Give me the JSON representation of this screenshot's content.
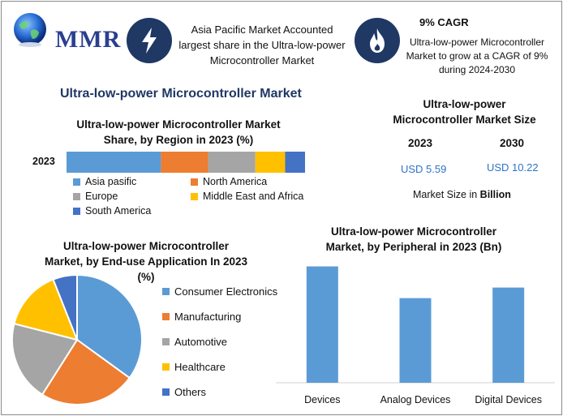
{
  "brand": {
    "name": "MMR"
  },
  "header": {
    "left_text_lines": [
      "Asia Pacific Market Accounted",
      "largest share in the Ultra-low-power",
      "Microcontroller Market"
    ],
    "cagr_title": "9% CAGR",
    "right_text_lines": [
      "Ultra-low-power Microcontroller",
      "Market to grow at a CAGR of 9%",
      "during 2024-2030"
    ]
  },
  "main_title": "Ultra-low-power Microcontroller Market",
  "size_panel": {
    "title_lines": [
      "Ultra-low-power",
      "Microcontroller Market Size"
    ],
    "year1": "2023",
    "year2": "2030",
    "value1": "USD 5.59",
    "value2": "USD 10.22",
    "unit_prefix": "Market Size in ",
    "unit_bold": "Billion"
  },
  "colors": {
    "blue": "#5b9bd5",
    "orange": "#ed7d31",
    "gray": "#a5a5a5",
    "yellow": "#ffc000",
    "darkblue": "#4472c4",
    "navy": "#1f3864"
  },
  "icons": {
    "left_badge": "lightning-icon",
    "right_badge": "flame-icon",
    "logo": "globe-icon"
  },
  "chart_data": [
    {
      "type": "bar",
      "orientation": "horizontal-stacked",
      "title_lines": [
        "Ultra-low-power Microcontroller Market",
        "Share, by Region in 2023 (%)"
      ],
      "categories": [
        "2023"
      ],
      "series": [
        {
          "name": "Asia pasific",
          "values": [
            38
          ],
          "color": "#5b9bd5"
        },
        {
          "name": "North America",
          "values": [
            19
          ],
          "color": "#ed7d31"
        },
        {
          "name": "Europe",
          "values": [
            19
          ],
          "color": "#a5a5a5"
        },
        {
          "name": "Middle East and Africa",
          "values": [
            12
          ],
          "color": "#ffc000"
        },
        {
          "name": "South America",
          "values": [
            8
          ],
          "color": "#4472c4"
        }
      ],
      "legend": "bottom"
    },
    {
      "type": "pie",
      "title_lines": [
        "Ultra-low-power Microcontroller",
        "Market, by End-use Application In 2023",
        "(%)"
      ],
      "slices": [
        {
          "name": "Consumer Electronics",
          "value": 35,
          "color": "#5b9bd5"
        },
        {
          "name": "Manufacturing",
          "value": 24,
          "color": "#ed7d31"
        },
        {
          "name": "Automotive",
          "value": 20,
          "color": "#a5a5a5"
        },
        {
          "name": "Healthcare",
          "value": 15,
          "color": "#ffc000"
        },
        {
          "name": "Others",
          "value": 6,
          "color": "#4472c4"
        }
      ],
      "legend": "right"
    },
    {
      "type": "bar",
      "title_lines": [
        "Ultra-low-power Microcontroller",
        "Market, by Peripheral in 2023 (Bn)"
      ],
      "categories": [
        "Devices",
        "Analog Devices",
        "Digital Devices"
      ],
      "values": [
        2.2,
        1.6,
        1.8
      ],
      "ylim": [
        0,
        2.3
      ],
      "color": "#5b9bd5",
      "grid": false
    }
  ]
}
